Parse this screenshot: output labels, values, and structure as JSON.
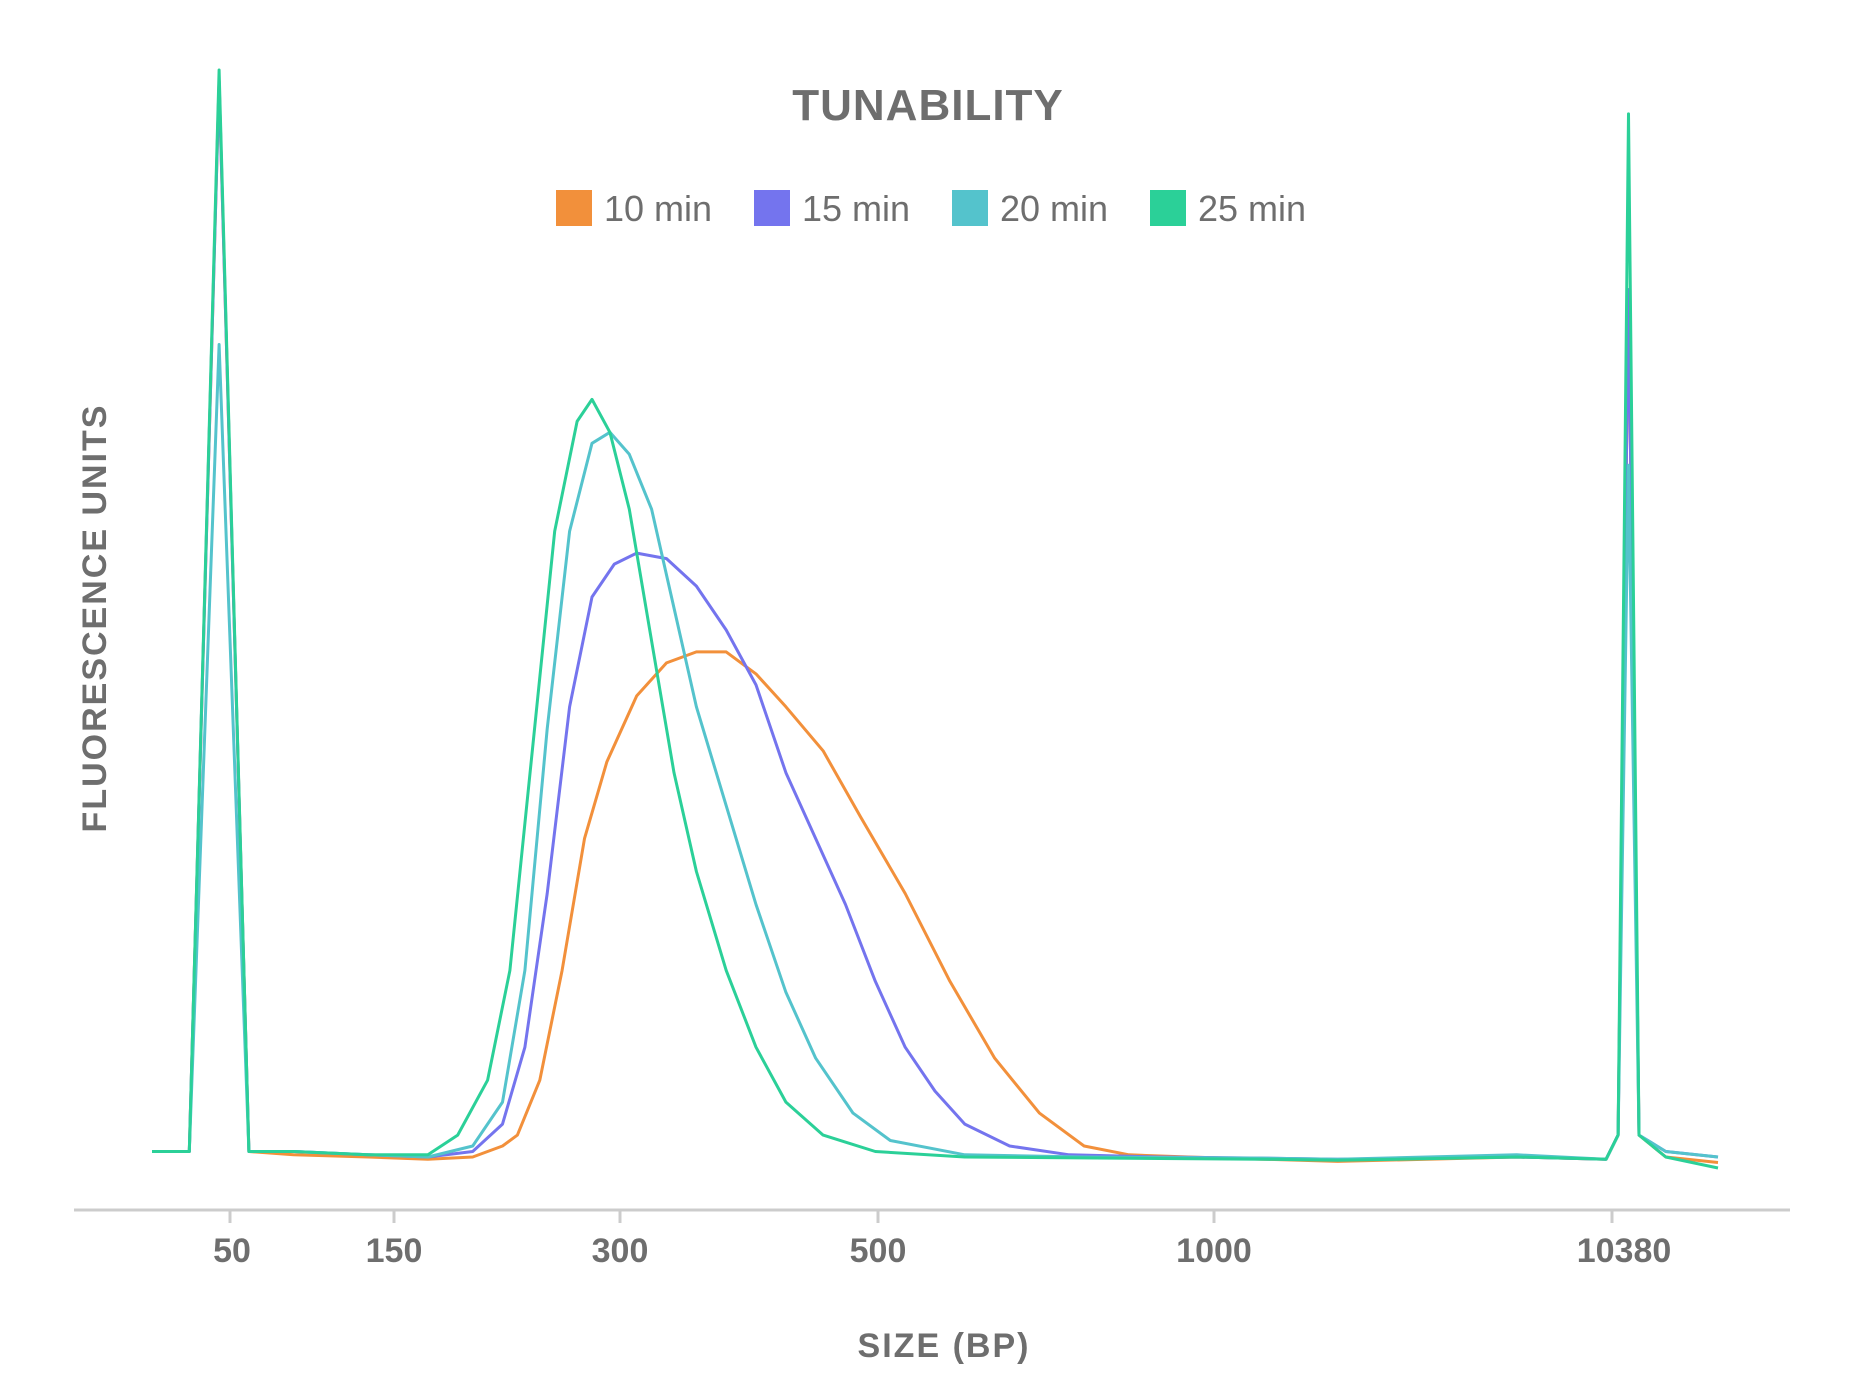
{
  "chart_data": {
    "type": "line",
    "title": "TUNABILITY",
    "xlabel": "SIZE (BP)",
    "ylabel": "FLUORESCENCE UNITS",
    "x_ticks": [
      "50",
      "150",
      "300",
      "500",
      "1000",
      "10380"
    ],
    "grid": false,
    "legend_placement": "top-center",
    "series": [
      {
        "name": "10 min",
        "color": "#F2903B",
        "points": [
          [
            -0.45,
            0.015
          ],
          [
            -0.2,
            0.015
          ],
          [
            0,
            0.99
          ],
          [
            0.2,
            0.015
          ],
          [
            0.5,
            0.012
          ],
          [
            1,
            0.01
          ],
          [
            1.4,
            0.008
          ],
          [
            1.7,
            0.01
          ],
          [
            1.9,
            0.02
          ],
          [
            2,
            0.03
          ],
          [
            2.15,
            0.08
          ],
          [
            2.3,
            0.18
          ],
          [
            2.45,
            0.3
          ],
          [
            2.6,
            0.37
          ],
          [
            2.8,
            0.43
          ],
          [
            3,
            0.46
          ],
          [
            3.2,
            0.47
          ],
          [
            3.4,
            0.47
          ],
          [
            3.6,
            0.45
          ],
          [
            3.8,
            0.42
          ],
          [
            4.05,
            0.38
          ],
          [
            4.3,
            0.32
          ],
          [
            4.6,
            0.25
          ],
          [
            4.9,
            0.17
          ],
          [
            5.2,
            0.1
          ],
          [
            5.5,
            0.05
          ],
          [
            5.8,
            0.02
          ],
          [
            6.1,
            0.012
          ],
          [
            6.5,
            0.01
          ],
          [
            7,
            0.008
          ],
          [
            7.5,
            0.006
          ],
          [
            8.7,
            0.01
          ],
          [
            9.3,
            0.008
          ],
          [
            9.38,
            0.03
          ],
          [
            9.45,
            0.8
          ],
          [
            9.52,
            0.03
          ],
          [
            9.7,
            0.01
          ],
          [
            10.05,
            0.005
          ]
        ]
      },
      {
        "name": "15 min",
        "color": "#7474EE",
        "points": [
          [
            -0.45,
            0.015
          ],
          [
            -0.2,
            0.015
          ],
          [
            0,
            0.99
          ],
          [
            0.2,
            0.015
          ],
          [
            0.5,
            0.015
          ],
          [
            1,
            0.012
          ],
          [
            1.4,
            0.01
          ],
          [
            1.7,
            0.015
          ],
          [
            1.9,
            0.04
          ],
          [
            2.05,
            0.11
          ],
          [
            2.2,
            0.25
          ],
          [
            2.35,
            0.42
          ],
          [
            2.5,
            0.52
          ],
          [
            2.65,
            0.55
          ],
          [
            2.8,
            0.56
          ],
          [
            3,
            0.555
          ],
          [
            3.2,
            0.53
          ],
          [
            3.4,
            0.49
          ],
          [
            3.6,
            0.44
          ],
          [
            3.8,
            0.36
          ],
          [
            4,
            0.3
          ],
          [
            4.2,
            0.24
          ],
          [
            4.4,
            0.17
          ],
          [
            4.6,
            0.11
          ],
          [
            4.8,
            0.07
          ],
          [
            5,
            0.04
          ],
          [
            5.3,
            0.02
          ],
          [
            5.7,
            0.012
          ],
          [
            6.3,
            0.01
          ],
          [
            7,
            0.009
          ],
          [
            7.5,
            0.008
          ],
          [
            8.7,
            0.01
          ],
          [
            9.3,
            0.008
          ],
          [
            9.38,
            0.03
          ],
          [
            9.45,
            0.8
          ],
          [
            9.52,
            0.03
          ],
          [
            9.7,
            0.015
          ],
          [
            10.05,
            0.01
          ]
        ]
      },
      {
        "name": "20 min",
        "color": "#54C3CC",
        "points": [
          [
            -0.45,
            0.015
          ],
          [
            -0.2,
            0.015
          ],
          [
            0,
            0.75
          ],
          [
            0.2,
            0.015
          ],
          [
            0.5,
            0.015
          ],
          [
            1,
            0.012
          ],
          [
            1.4,
            0.01
          ],
          [
            1.7,
            0.02
          ],
          [
            1.9,
            0.06
          ],
          [
            2.05,
            0.18
          ],
          [
            2.2,
            0.4
          ],
          [
            2.35,
            0.58
          ],
          [
            2.5,
            0.66
          ],
          [
            2.62,
            0.67
          ],
          [
            2.75,
            0.65
          ],
          [
            2.9,
            0.6
          ],
          [
            3.05,
            0.51
          ],
          [
            3.2,
            0.42
          ],
          [
            3.4,
            0.33
          ],
          [
            3.6,
            0.24
          ],
          [
            3.8,
            0.16
          ],
          [
            4,
            0.1
          ],
          [
            4.25,
            0.05
          ],
          [
            4.5,
            0.025
          ],
          [
            5,
            0.012
          ],
          [
            5.8,
            0.01
          ],
          [
            7,
            0.009
          ],
          [
            7.5,
            0.008
          ],
          [
            8.7,
            0.012
          ],
          [
            9.3,
            0.008
          ],
          [
            9.38,
            0.03
          ],
          [
            9.45,
            0.64
          ],
          [
            9.52,
            0.03
          ],
          [
            9.7,
            0.015
          ],
          [
            10.05,
            0.01
          ]
        ]
      },
      {
        "name": "25 min",
        "color": "#2BD098",
        "points": [
          [
            -0.45,
            0.015
          ],
          [
            -0.2,
            0.015
          ],
          [
            0,
            1.0
          ],
          [
            0.2,
            0.015
          ],
          [
            0.5,
            0.015
          ],
          [
            1,
            0.012
          ],
          [
            1.4,
            0.012
          ],
          [
            1.6,
            0.03
          ],
          [
            1.8,
            0.08
          ],
          [
            1.95,
            0.18
          ],
          [
            2.1,
            0.38
          ],
          [
            2.25,
            0.58
          ],
          [
            2.4,
            0.68
          ],
          [
            2.5,
            0.7
          ],
          [
            2.62,
            0.67
          ],
          [
            2.75,
            0.6
          ],
          [
            2.9,
            0.48
          ],
          [
            3.05,
            0.36
          ],
          [
            3.2,
            0.27
          ],
          [
            3.4,
            0.18
          ],
          [
            3.6,
            0.11
          ],
          [
            3.8,
            0.06
          ],
          [
            4.05,
            0.03
          ],
          [
            4.4,
            0.015
          ],
          [
            5,
            0.01
          ],
          [
            7,
            0.008
          ],
          [
            7.5,
            0.007
          ],
          [
            8.7,
            0.01
          ],
          [
            9.3,
            0.008
          ],
          [
            9.38,
            0.03
          ],
          [
            9.45,
            0.96
          ],
          [
            9.52,
            0.03
          ],
          [
            9.7,
            0.01
          ],
          [
            10.05,
            0.0
          ]
        ]
      }
    ]
  }
}
